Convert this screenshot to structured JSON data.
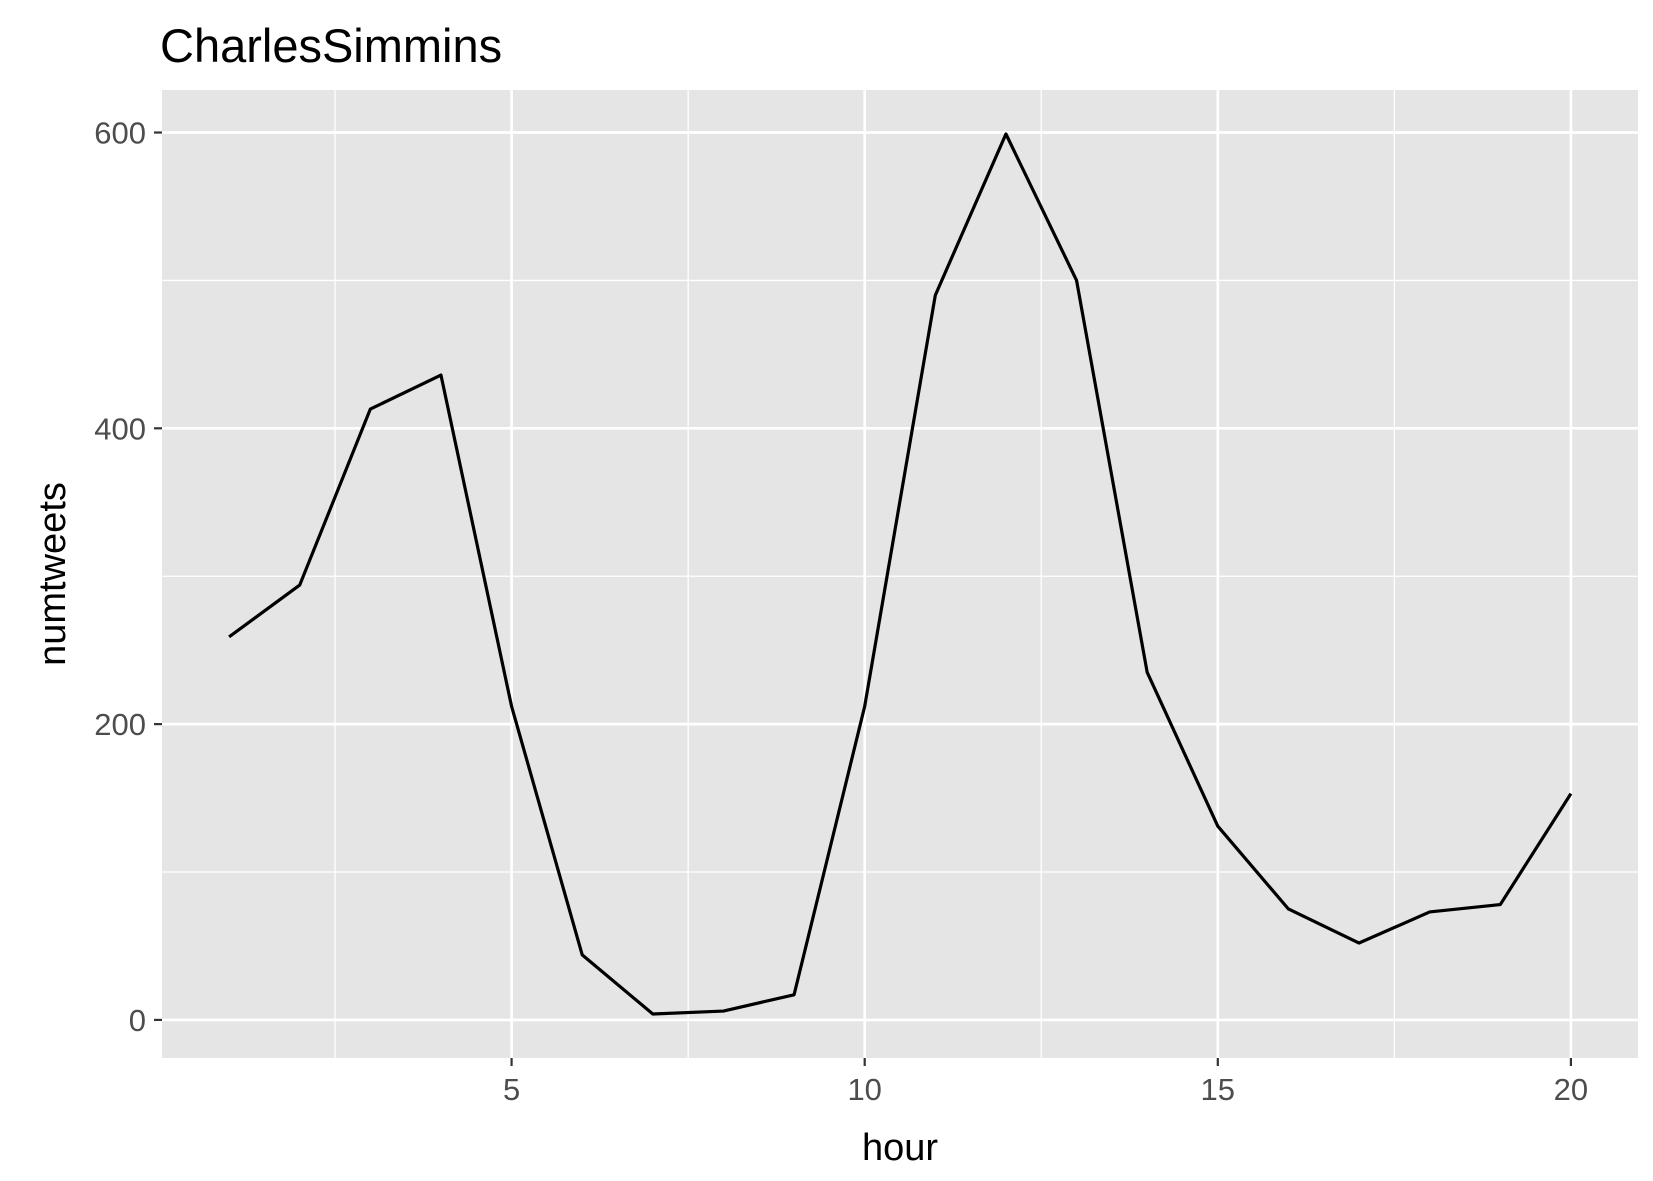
{
  "chart_data": {
    "type": "line",
    "title": "CharlesSimmins",
    "xlabel": "hour",
    "ylabel": "numtweets",
    "x": [
      1,
      2,
      3,
      4,
      5,
      6,
      7,
      8,
      9,
      10,
      11,
      12,
      13,
      14,
      15,
      16,
      17,
      18,
      19,
      20
    ],
    "series": [
      {
        "values": [
          259,
          294,
          413,
          436,
          212,
          44,
          4,
          6,
          17,
          212,
          490,
          599,
          500,
          235,
          131,
          75,
          52,
          73,
          78,
          153
        ]
      }
    ],
    "xlim": [
      0.05,
      20.95
    ],
    "ylim": [
      -25.75,
      628.75
    ],
    "x_ticks": [
      5,
      10,
      15,
      20
    ],
    "x_tick_labels": [
      "5",
      "10",
      "15",
      "20"
    ],
    "y_ticks": [
      0,
      200,
      400,
      600
    ],
    "y_tick_labels": [
      "0",
      "200",
      "400",
      "600"
    ],
    "grid": true,
    "legend": "none",
    "colors": {
      "panel_background": "#e5e5e5",
      "gridline": "#ffffff",
      "line": "#000000",
      "tick_text": "#4d4d4d",
      "tick_mark": "#333333"
    }
  }
}
